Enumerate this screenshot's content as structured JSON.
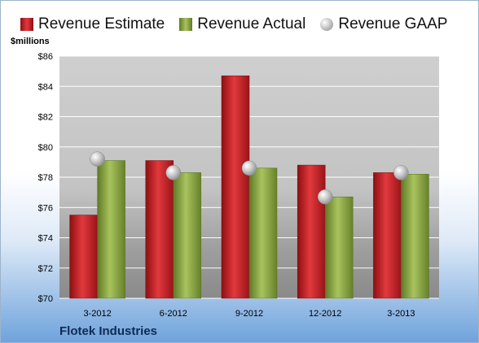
{
  "legend": {
    "estimate": "Revenue Estimate",
    "actual": "Revenue Actual",
    "gaap": "Revenue GAAP"
  },
  "company": "Flotek Industries",
  "colors": {
    "estimate": "#c81e23",
    "actual": "#8ea946",
    "gaap": "#b9b9b9"
  },
  "chart_data": {
    "type": "bar",
    "ylabel": "$millions",
    "ylim": [
      70,
      86
    ],
    "yticks": [
      "$70",
      "$72",
      "$74",
      "$76",
      "$78",
      "$80",
      "$82",
      "$84",
      "$86"
    ],
    "categories": [
      "3-2012",
      "6-2012",
      "9-2012",
      "12-2012",
      "3-2013"
    ],
    "series": [
      {
        "name": "Revenue Estimate",
        "type": "bar",
        "values": [
          75.5,
          79.1,
          84.7,
          78.8,
          78.3
        ]
      },
      {
        "name": "Revenue Actual",
        "type": "bar",
        "values": [
          79.1,
          78.3,
          78.6,
          76.7,
          78.2
        ]
      },
      {
        "name": "Revenue GAAP",
        "type": "scatter",
        "values": [
          79.2,
          78.3,
          78.6,
          76.7,
          78.3
        ]
      }
    ],
    "grid": true,
    "legend_position": "top"
  }
}
